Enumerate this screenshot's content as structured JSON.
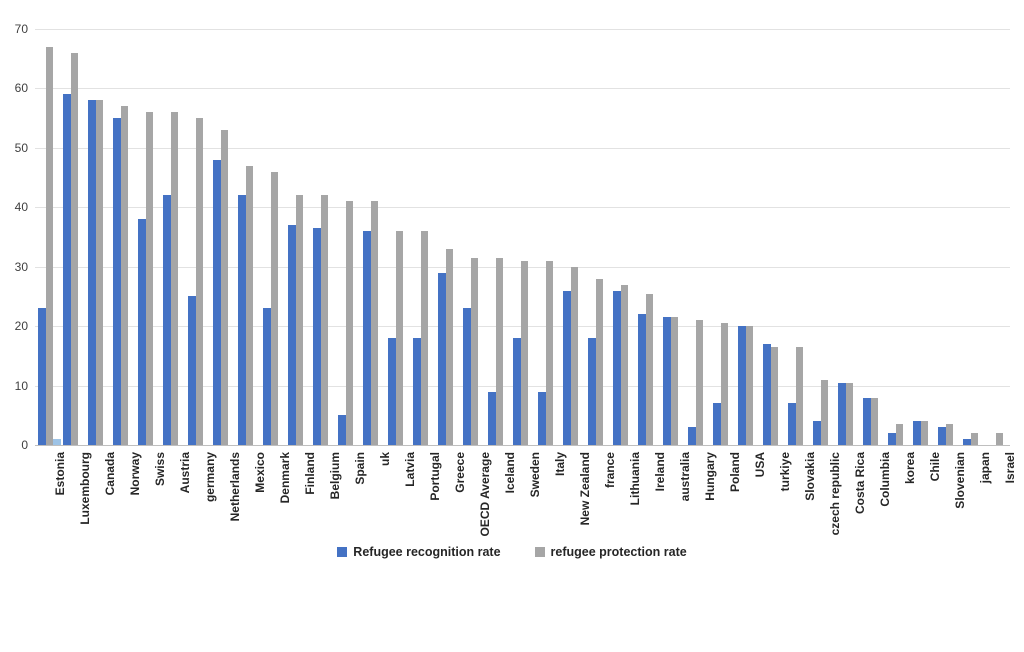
{
  "chart_data": {
    "type": "bar",
    "title": "",
    "xlabel": "",
    "ylabel": "",
    "ylim": [
      0,
      70
    ],
    "ytick_step": 10,
    "y_ticks": [
      0,
      10,
      20,
      30,
      40,
      50,
      60,
      70
    ],
    "grid": true,
    "legend_position": "bottom",
    "categories": [
      "Estonia",
      "Luxembourg",
      "Canada",
      "Norway",
      "Swiss",
      "Austria",
      "germany",
      "Netherlands",
      "Mexico",
      "Denmark",
      "Finland",
      "Belgium",
      "Spain",
      "uk",
      "Latvia",
      "Portugal",
      "Greece",
      "OECD Average",
      "Iceland",
      "Sweden",
      "Italy",
      "New Zealand",
      "france",
      "Lithuania",
      "Ireland",
      "australia",
      "Hungary",
      "Poland",
      "USA",
      "turkiye",
      "Slovakia",
      "czech republic",
      "Costa Rica",
      "Columbia",
      "korea",
      "Chile",
      "Slovenian",
      "japan",
      "Israel"
    ],
    "series": [
      {
        "name": "Refugee recognition rate",
        "color": "#4472c4",
        "values": [
          23,
          59,
          58,
          55,
          38,
          42,
          25,
          48,
          42,
          23,
          37,
          36.5,
          5,
          36,
          18,
          18,
          29,
          23,
          9,
          18,
          9,
          26,
          18,
          26,
          22,
          21.5,
          3,
          7,
          20,
          17,
          7,
          4,
          10.5,
          8,
          2,
          4,
          3,
          1,
          0
        ]
      },
      {
        "name": "refugee protection rate",
        "color": "#a6a6a6",
        "values": [
          67,
          66,
          58,
          57,
          56,
          56,
          55,
          53,
          47,
          46,
          42,
          42,
          41,
          41,
          36,
          36,
          33,
          31.5,
          31.5,
          31,
          31,
          30,
          28,
          27,
          25.5,
          21.5,
          21,
          20.5,
          20,
          16.5,
          16.5,
          11,
          10.5,
          8,
          3.5,
          4,
          3.5,
          2,
          2
        ]
      }
    ],
    "extra_bar": {
      "category": "Estonia",
      "value": 1,
      "color": "#9dc3e6",
      "note": "small unlabeled light-blue bar beside Estonia group"
    }
  },
  "legend": {
    "items": [
      {
        "label": "Refugee recognition rate",
        "swatch_color": "#4472c4"
      },
      {
        "label": "refugee protection rate",
        "swatch_color": "#a6a6a6"
      }
    ]
  },
  "colors": {
    "bar_blue": "#4472c4",
    "bar_gray": "#a6a6a6",
    "bar_light_blue": "#9dc3e6",
    "gridline": "#e2e2e2",
    "axis_line": "#bfbfbf",
    "text": "#262626",
    "background": "#ffffff"
  }
}
